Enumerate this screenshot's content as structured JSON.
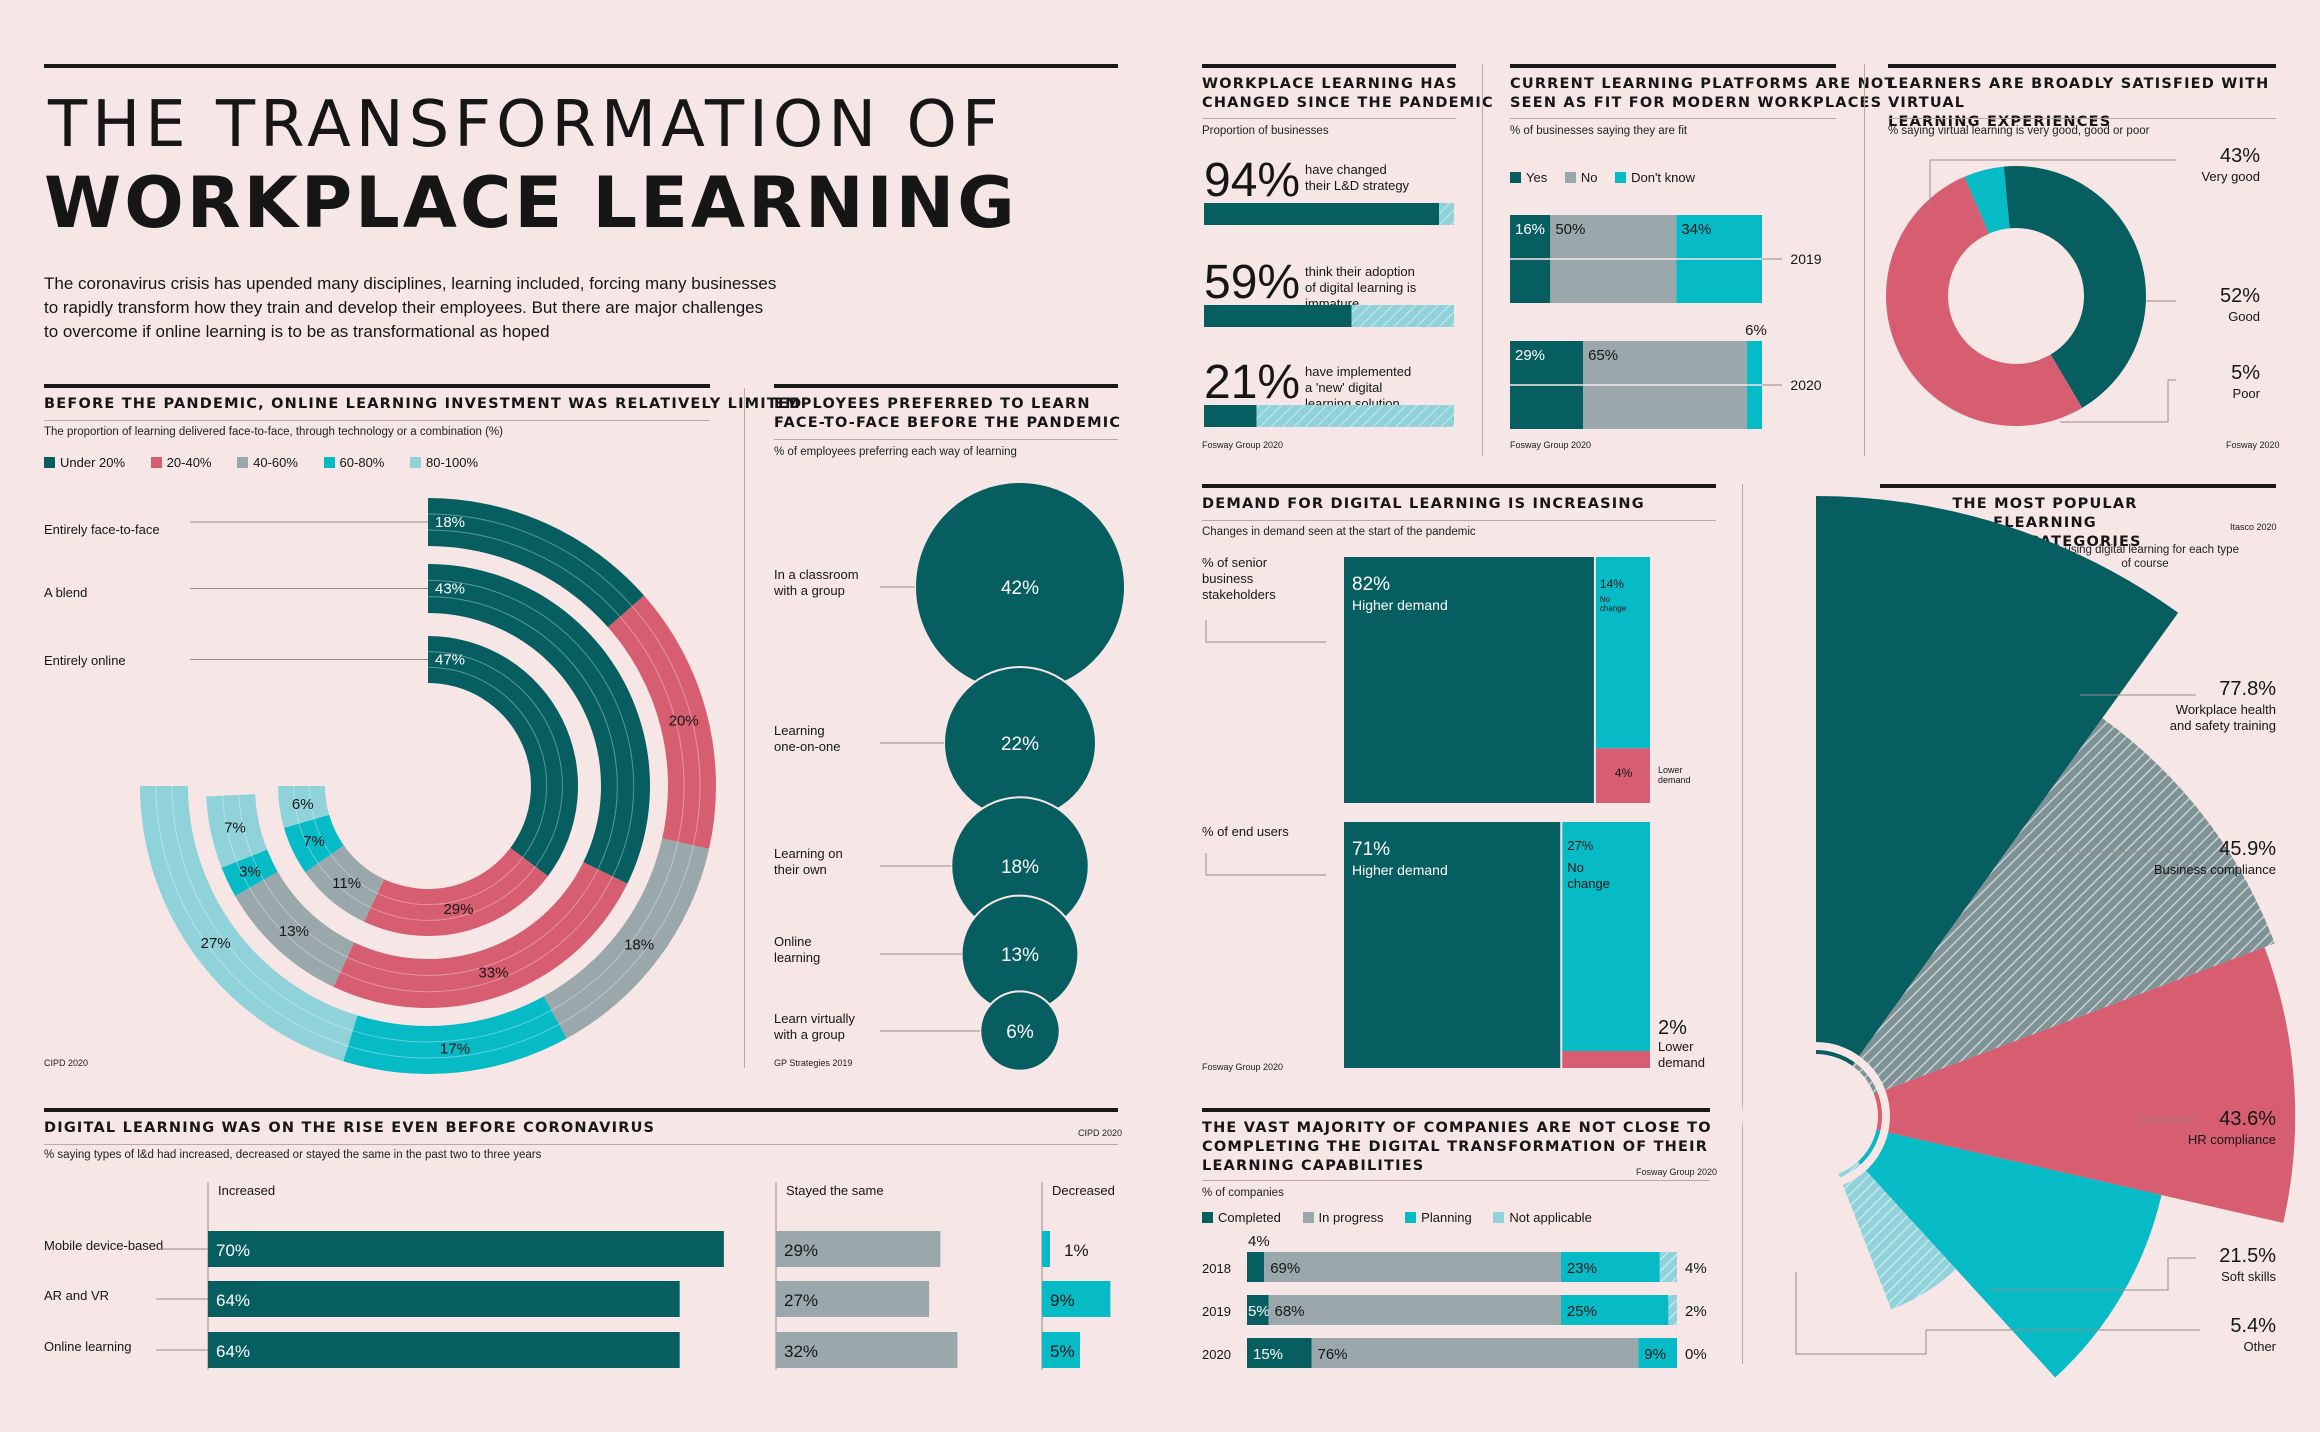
{
  "colors": {
    "teal": "#065e61",
    "pink": "#d65e70",
    "grey": "#9aa8ab",
    "cyan": "#06bac6",
    "light": "#90d2d9",
    "bg": "#f6e6e6"
  },
  "header": {
    "title1": "THE TRANSFORMATION OF",
    "title2": "WORKPLACE LEARNING",
    "intro": [
      "The coronavirus crisis has upended many disciplines, learning included, forcing many businesses",
      "to rapidly transform how they train and develop their employees. But there are major challenges",
      "to overcome if online learning is to be as transformational as hoped"
    ]
  },
  "investment": {
    "title": "BEFORE THE PANDEMIC, ONLINE LEARNING INVESTMENT WAS RELATIVELY LIMITED",
    "subtitle": "The proportion of learning delivered face-to-face, through technology or a combination (%)",
    "source": "CIPD 2020",
    "legend": [
      "Under 20%",
      "20-40%",
      "40-60%",
      "60-80%",
      "80-100%"
    ],
    "chart_data": {
      "type": "radial-stacked-bar",
      "categories": [
        "Entirely face-to-face",
        "A blend",
        "Entirely online"
      ],
      "series": [
        {
          "name": "Under 20%",
          "values": [
            18,
            43,
            47
          ]
        },
        {
          "name": "20-40%",
          "values": [
            20,
            33,
            29
          ]
        },
        {
          "name": "40-60%",
          "values": [
            18,
            13,
            11
          ]
        },
        {
          "name": "60-80%",
          "values": [
            17,
            3,
            7
          ]
        },
        {
          "name": "80-100%",
          "values": [
            27,
            7,
            6
          ]
        }
      ]
    }
  },
  "preferred": {
    "title": [
      "EMPLOYEES PREFERRED TO LEARN",
      "FACE-TO-FACE BEFORE THE PANDEMIC"
    ],
    "subtitle": "% of employees preferring each way of learning",
    "source": "GP Strategies 2019",
    "chart_data": {
      "type": "bubble",
      "categories": [
        [
          "In a classroom",
          "with a group"
        ],
        [
          "Learning",
          "one-on-one"
        ],
        [
          "Learning on",
          "their own"
        ],
        [
          "Online",
          "learning"
        ],
        [
          "Learn virtually",
          "with a group"
        ]
      ],
      "values": [
        42,
        22,
        18,
        13,
        6
      ],
      "labels": [
        "42%",
        "22%",
        "18%",
        "13%",
        "6%"
      ]
    }
  },
  "rise": {
    "title": "DIGITAL LEARNING WAS ON THE RISE EVEN BEFORE CORONAVIRUS",
    "subtitle": "% saying types of l&d had increased, decreased or stayed the same in the past two to three years",
    "source": "CIPD 2020",
    "chart_data": {
      "type": "bar",
      "columns": [
        "Increased",
        "Stayed the same",
        "Decreased"
      ],
      "categories": [
        "Mobile device-based",
        "AR and VR",
        "Online learning"
      ],
      "series": [
        {
          "name": "Increased",
          "values": [
            70,
            64,
            64
          ]
        },
        {
          "name": "Stayed the same",
          "values": [
            29,
            27,
            32
          ]
        },
        {
          "name": "Decreased",
          "values": [
            1,
            9,
            5
          ]
        }
      ]
    }
  },
  "changed": {
    "title": [
      "WORKPLACE LEARNING HAS",
      "CHANGED SINCE THE PANDEMIC"
    ],
    "subtitle": "Proportion of businesses",
    "source": "Fosway Group 2020",
    "chart_data": {
      "type": "bar",
      "values": [
        94,
        59,
        21
      ],
      "labels": [
        "94%",
        "59%",
        "21%"
      ],
      "descriptions": [
        [
          "have changed",
          "their L&D strategy"
        ],
        [
          "think their adoption",
          "of digital learning is",
          "immature"
        ],
        [
          "have implemented",
          "a 'new' digital",
          "learning solution"
        ]
      ]
    }
  },
  "platforms": {
    "title": [
      "CURRENT LEARNING PLATFORMS ARE NOT",
      "SEEN AS FIT FOR MODERN WORKPLACES"
    ],
    "subtitle": "% of businesses saying they are fit",
    "source": "Fosway Group 2020",
    "legend": [
      "Yes",
      "No",
      "Don't know"
    ],
    "chart_data": {
      "type": "bar",
      "categories": [
        "2019",
        "2020"
      ],
      "series": [
        {
          "name": "Yes",
          "values": [
            16,
            29
          ],
          "labels": [
            "16%",
            "29%"
          ]
        },
        {
          "name": "No",
          "values": [
            50,
            65
          ],
          "labels": [
            "50%",
            "65%"
          ]
        },
        {
          "name": "Don't know",
          "values": [
            34,
            6
          ],
          "labels": [
            "34%",
            "6%"
          ]
        }
      ]
    }
  },
  "satisfied": {
    "title": [
      "LEARNERS ARE BROADLY SATISFIED WITH VIRTUAL",
      "LEARNING EXPERIENCES"
    ],
    "subtitle": "% saying virtual learning is very good, good or poor",
    "source": "Fosway 2020",
    "chart_data": {
      "type": "pie",
      "labels": [
        "Very good",
        "Good",
        "Poor"
      ],
      "values": [
        43,
        52,
        5
      ],
      "value_labels": [
        "43%",
        "52%",
        "5%"
      ]
    }
  },
  "demand": {
    "title": "DEMAND FOR DIGITAL LEARNING IS INCREASING",
    "subtitle": "Changes in demand seen at the start of the pandemic",
    "source": "Fosway Group 2020",
    "chart_data": {
      "type": "bar",
      "categories": [
        [
          "% of senior",
          "business",
          "stakeholders"
        ],
        [
          "% of end users"
        ]
      ],
      "series": [
        {
          "name": "Higher demand",
          "values": [
            82,
            71
          ],
          "labels": [
            "82%",
            "71%"
          ]
        },
        {
          "name": "No change",
          "values": [
            14,
            27
          ],
          "labels": [
            "14%",
            "27%"
          ]
        },
        {
          "name": "Lower demand",
          "values": [
            4,
            2
          ],
          "labels": [
            "4%",
            "2%"
          ]
        }
      ]
    }
  },
  "transformation": {
    "title": [
      "THE VAST MAJORITY OF COMPANIES ARE NOT CLOSE TO",
      "COMPLETING THE DIGITAL TRANSFORMATION OF THEIR",
      "LEARNING CAPABILITIES"
    ],
    "subtitle": "% of companies",
    "source": "Fosway Group 2020",
    "legend": [
      "Completed",
      "In progress",
      "Planning",
      "Not applicable"
    ],
    "chart_data": {
      "type": "bar",
      "categories": [
        "2018",
        "2019",
        "2020"
      ],
      "series": [
        {
          "name": "Completed",
          "values": [
            4,
            5,
            15
          ],
          "labels": [
            "4%",
            "5%",
            "15%"
          ]
        },
        {
          "name": "In progress",
          "values": [
            69,
            68,
            76
          ],
          "labels": [
            "69%",
            "68%",
            "76%"
          ]
        },
        {
          "name": "Planning",
          "values": [
            23,
            25,
            9
          ],
          "labels": [
            "23%",
            "25%",
            "9%"
          ]
        },
        {
          "name": "Not applicable",
          "values": [
            4,
            2,
            0
          ],
          "labels": [
            "4%",
            "2%",
            "0%"
          ]
        }
      ]
    }
  },
  "popular": {
    "title": [
      "THE MOST POPULAR ELEARNING",
      "COURSE CATEGORIES"
    ],
    "subtitle": [
      "% using digital learning for each type",
      "of course"
    ],
    "source": "Itasco 2020",
    "chart_data": {
      "type": "polar-area",
      "labels": [
        [
          "Workplace health",
          "and safety training"
        ],
        [
          "Business compliance"
        ],
        [
          "HR compliance"
        ],
        [
          "Soft skills"
        ],
        [
          "Other"
        ]
      ],
      "values": [
        77.8,
        45.9,
        43.6,
        21.5,
        5.4
      ],
      "value_labels": [
        "77.8%",
        "45.9%",
        "43.6%",
        "21.5%",
        "5.4%"
      ]
    }
  }
}
